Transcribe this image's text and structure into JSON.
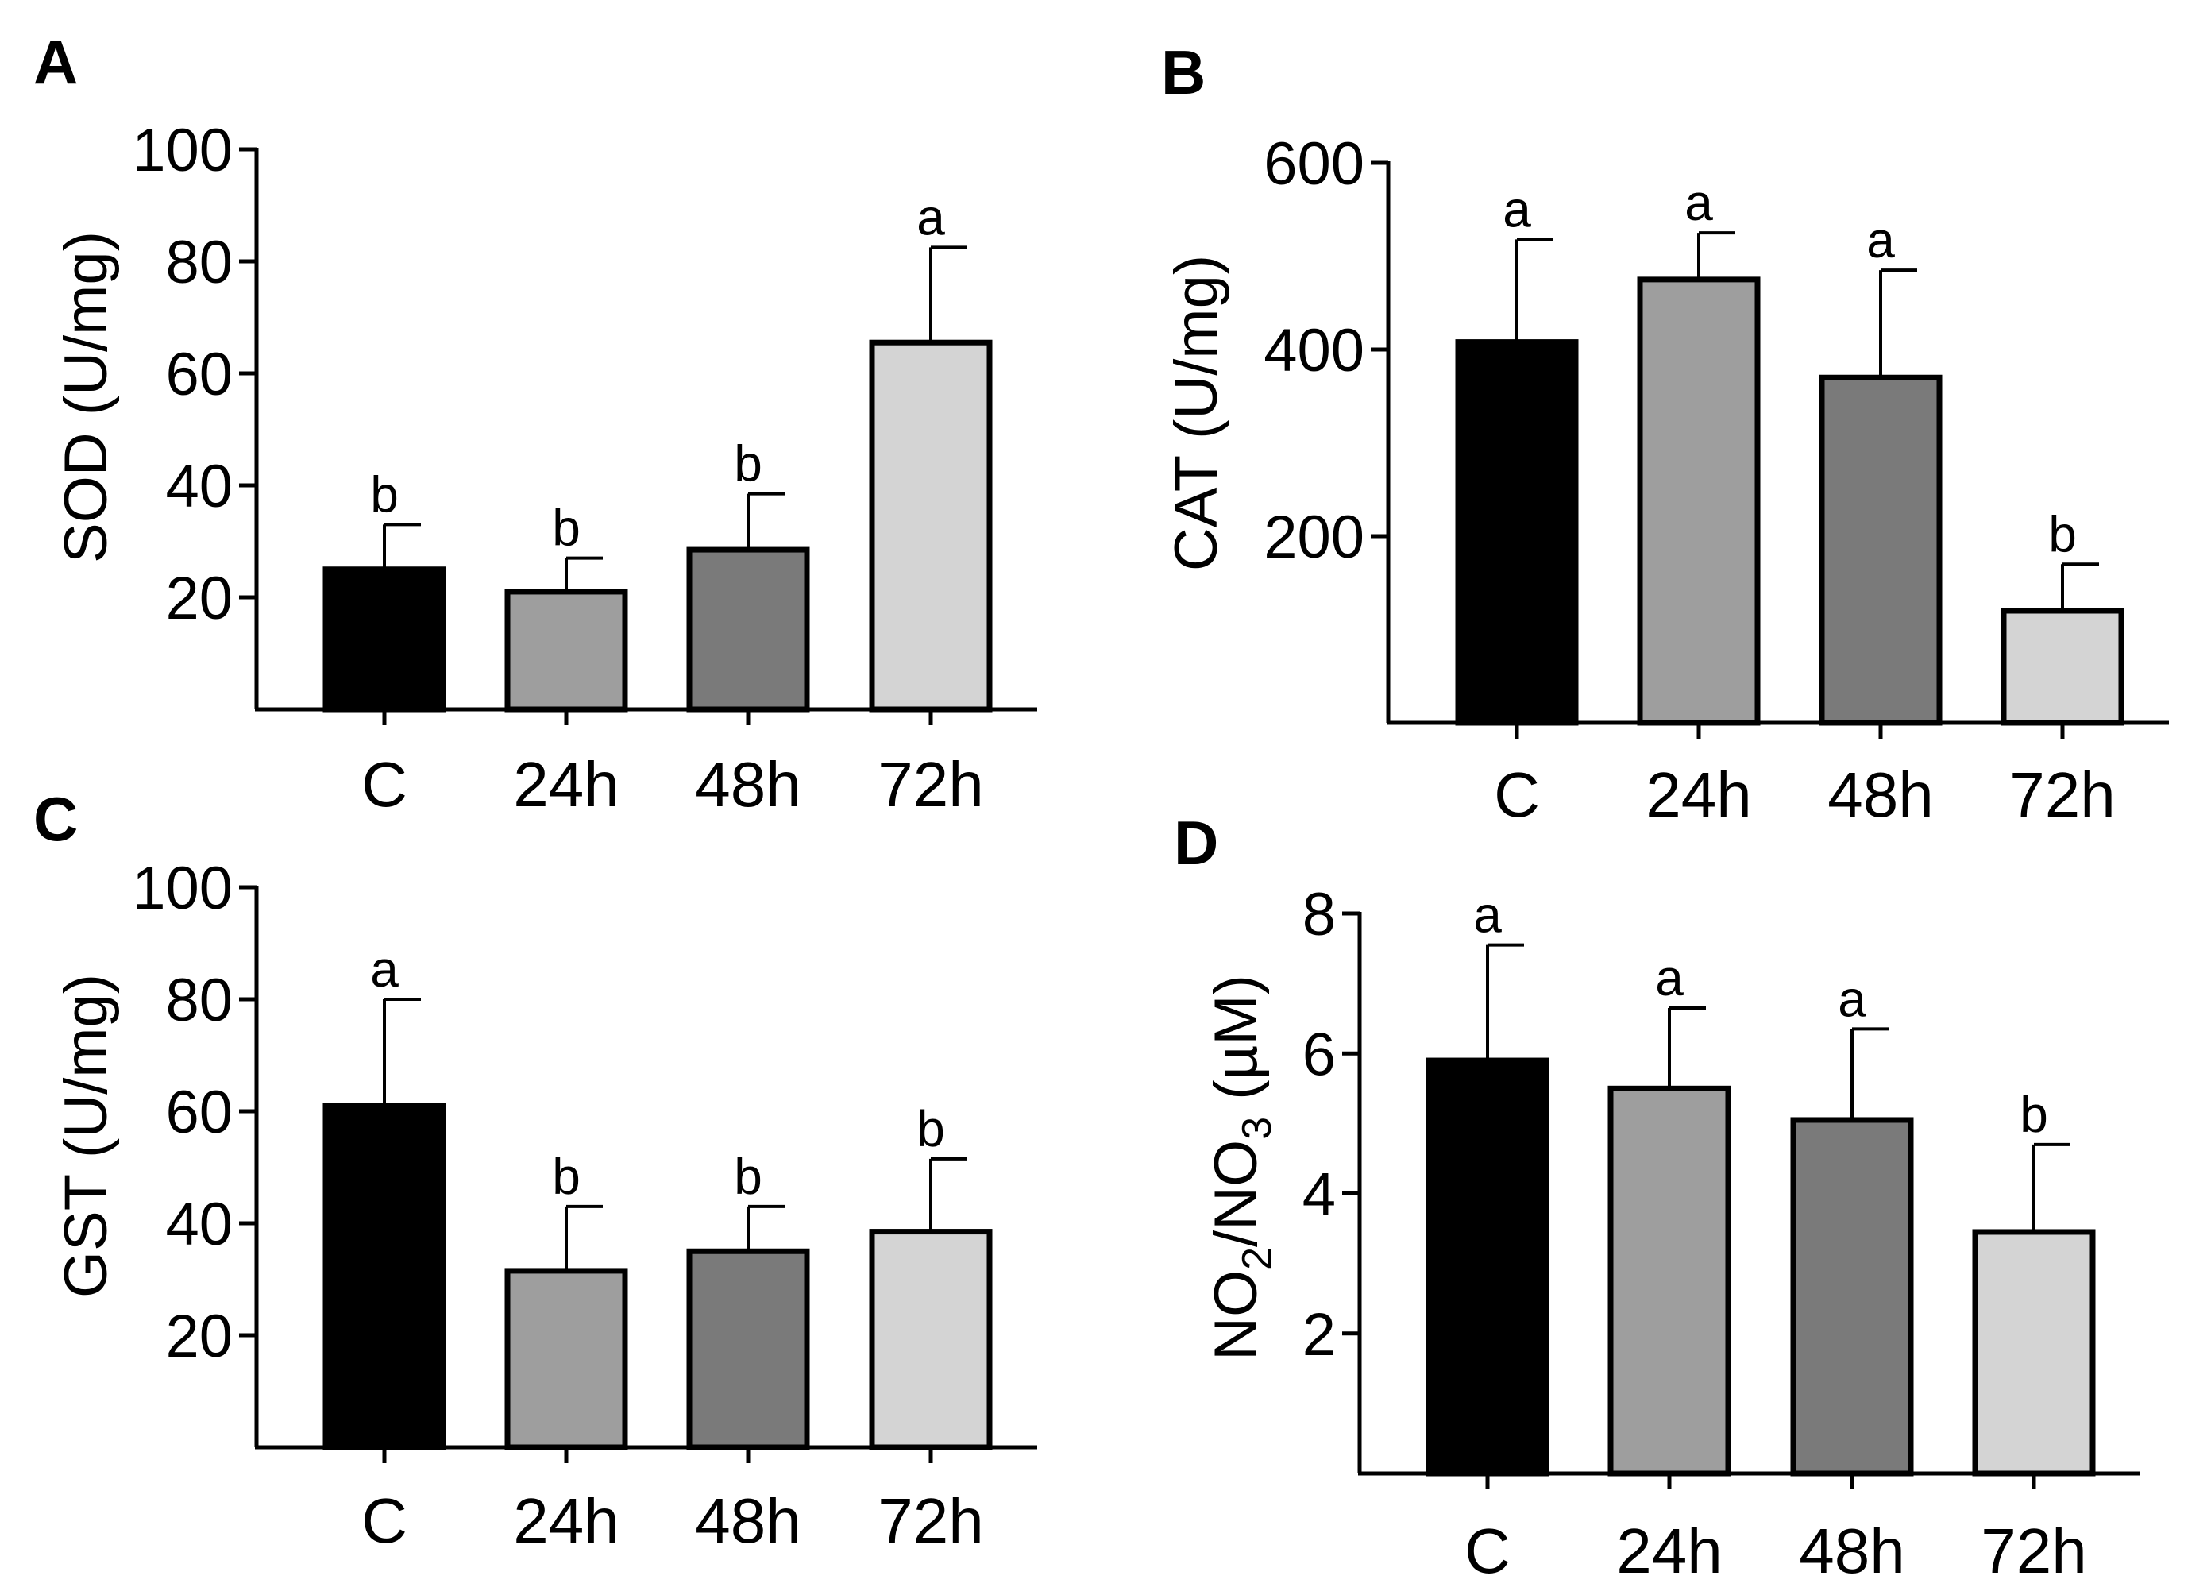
{
  "chart_data": [
    {
      "type": "bar",
      "panel": "A",
      "categories": [
        "C",
        "24h",
        "48h",
        "72h"
      ],
      "values": [
        25,
        21,
        28.5,
        65.5
      ],
      "errors": [
        8,
        6,
        10,
        17
      ],
      "significance": [
        "b",
        "b",
        "b",
        "a"
      ],
      "colors": [
        "#000000",
        "#9e9e9e",
        "#7a7a7a",
        "#d4d4d4"
      ],
      "ylabel": "SOD (U/mg)",
      "ylabel_main": "SOD (U/mg)",
      "ylim": [
        0,
        100
      ],
      "yticks": [
        20,
        40,
        60,
        80,
        100
      ],
      "ytick_labels": [
        "20",
        "40",
        "60",
        "80",
        "100"
      ]
    },
    {
      "type": "bar",
      "panel": "B",
      "categories": [
        "C",
        "24h",
        "48h",
        "72h"
      ],
      "values": [
        408,
        475,
        370,
        120
      ],
      "errors": [
        110,
        50,
        115,
        50
      ],
      "significance": [
        "a",
        "a",
        "a",
        "b"
      ],
      "colors": [
        "#000000",
        "#9e9e9e",
        "#7a7a7a",
        "#d4d4d4"
      ],
      "ylabel": "CAT (U/mg)",
      "ylabel_main": "CAT (U/mg)",
      "ylim": [
        0,
        600
      ],
      "yticks": [
        200,
        400,
        600
      ],
      "ytick_labels": [
        "200",
        "400",
        "600"
      ]
    },
    {
      "type": "bar",
      "panel": "C",
      "categories": [
        "C",
        "24h",
        "48h",
        "72h"
      ],
      "values": [
        61,
        31.5,
        35,
        38.5
      ],
      "errors": [
        19,
        11.5,
        8,
        13
      ],
      "significance": [
        "a",
        "b",
        "b",
        "b"
      ],
      "colors": [
        "#000000",
        "#9e9e9e",
        "#7a7a7a",
        "#d4d4d4"
      ],
      "ylabel": "GST (U/mg)",
      "ylabel_main": "GST (U/mg)",
      "ylim": [
        0,
        100
      ],
      "yticks": [
        20,
        40,
        60,
        80,
        100
      ],
      "ytick_labels": [
        "20",
        "40",
        "60",
        "80",
        "100"
      ]
    },
    {
      "type": "bar",
      "panel": "D",
      "categories": [
        "C",
        "24h",
        "48h",
        "72h"
      ],
      "values": [
        5.9,
        5.5,
        5.05,
        3.45
      ],
      "errors": [
        1.65,
        1.15,
        1.3,
        1.25
      ],
      "significance": [
        "a",
        "a",
        "a",
        "b"
      ],
      "colors": [
        "#000000",
        "#9e9e9e",
        "#7a7a7a",
        "#d4d4d4"
      ],
      "ylabel": "NO2/NO3 (µM)",
      "ylabel_main": "NO",
      "ylabel_sub1": "2",
      "ylabel_mid": "/NO",
      "ylabel_sub2": "3",
      "ylabel_tail": " (µM)",
      "ylim": [
        0,
        8
      ],
      "yticks": [
        2,
        4,
        6,
        8
      ],
      "ytick_labels": [
        "2",
        "4",
        "6",
        "8"
      ]
    }
  ]
}
